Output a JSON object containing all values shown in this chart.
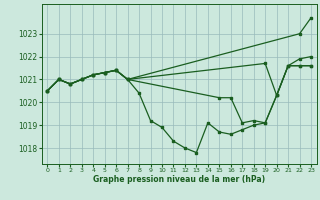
{
  "xlabel": "Graphe pression niveau de la mer (hPa)",
  "bg_color": "#cce8dd",
  "grid_color": "#99bbbb",
  "line_color": "#1a5e20",
  "xlim": [
    -0.5,
    23.5
  ],
  "ylim": [
    1017.3,
    1024.3
  ],
  "yticks": [
    1018,
    1019,
    1020,
    1021,
    1022,
    1023
  ],
  "xticks": [
    0,
    1,
    2,
    3,
    4,
    5,
    6,
    7,
    8,
    9,
    10,
    11,
    12,
    13,
    14,
    15,
    16,
    17,
    18,
    19,
    20,
    21,
    22,
    23
  ],
  "series": [
    {
      "x": [
        0,
        1,
        2,
        3,
        4,
        5,
        6,
        7,
        22,
        23
      ],
      "y": [
        1020.5,
        1021.0,
        1020.8,
        1021.0,
        1021.2,
        1021.3,
        1021.4,
        1021.0,
        1023.0,
        1023.7
      ]
    },
    {
      "x": [
        0,
        1,
        2,
        3,
        4,
        5,
        6,
        7,
        19,
        20,
        21,
        22,
        23
      ],
      "y": [
        1020.5,
        1021.0,
        1020.8,
        1021.0,
        1021.2,
        1021.3,
        1021.4,
        1021.0,
        1021.7,
        1020.3,
        1021.6,
        1021.9,
        1022.0
      ]
    },
    {
      "x": [
        0,
        1,
        2,
        3,
        4,
        5,
        6,
        7,
        15,
        16,
        17,
        18,
        19,
        20,
        21,
        22,
        23
      ],
      "y": [
        1020.5,
        1021.0,
        1020.8,
        1021.0,
        1021.2,
        1021.3,
        1021.4,
        1021.0,
        1020.2,
        1020.2,
        1019.1,
        1019.2,
        1019.1,
        1020.3,
        1021.6,
        1021.6,
        1021.6
      ]
    },
    {
      "x": [
        0,
        1,
        2,
        3,
        4,
        5,
        6,
        7,
        8,
        9,
        10,
        11,
        12,
        13,
        14,
        15,
        16,
        17,
        18,
        19,
        20,
        21,
        22,
        23
      ],
      "y": [
        1020.5,
        1021.0,
        1020.8,
        1021.0,
        1021.2,
        1021.3,
        1021.4,
        1021.0,
        1020.4,
        1019.2,
        1018.9,
        1018.3,
        1018.0,
        1017.8,
        1019.1,
        1018.7,
        1018.6,
        1018.8,
        1019.0,
        1019.1,
        1020.3,
        1021.6,
        1021.6,
        1021.6
      ]
    }
  ]
}
